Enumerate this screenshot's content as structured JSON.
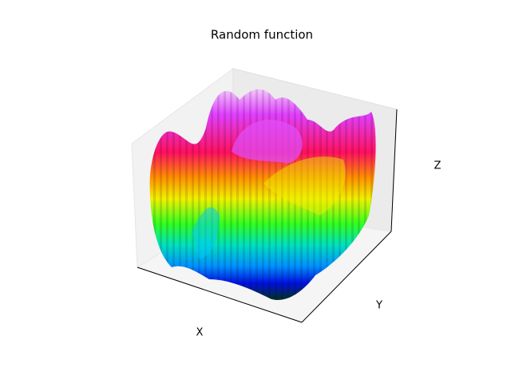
{
  "chart_data": {
    "type": "surface",
    "title": "Random function",
    "xlabel": "X",
    "ylabel": "Y",
    "zlabel": "Z"
  }
}
